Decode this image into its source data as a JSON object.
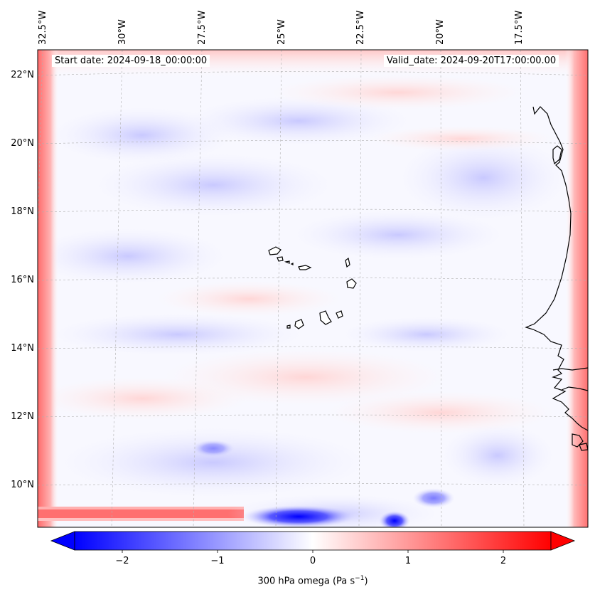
{
  "map": {
    "start_date": "Start date: 2024-09-18_00:00:00",
    "valid_date": "Valid_date: 2024-09-20T17:00:00.00",
    "longitude_labels": [
      "32.5°W",
      "30°W",
      "27.5°W",
      "25°W",
      "22.5°W",
      "20°W",
      "17.5°W"
    ],
    "latitude_labels": [
      "22°N",
      "20°N",
      "18°N",
      "16°N",
      "14°N",
      "12°N",
      "10°N"
    ],
    "field_variable": "300 hPa omega",
    "colormap": [
      "#0000ff",
      "#ffffff",
      "#ff0000"
    ]
  },
  "colorbar": {
    "title_text": "300 hPa omega (Pa s",
    "title_sup": "−1",
    "title_close": ")",
    "ticks": [
      {
        "value": -2,
        "label": "−2"
      },
      {
        "value": -1,
        "label": "−1"
      },
      {
        "value": 0,
        "label": "0"
      },
      {
        "value": 1,
        "label": "1"
      },
      {
        "value": 2,
        "label": "2"
      }
    ],
    "range": [
      -2.5,
      2.5
    ],
    "extend": "both"
  }
}
